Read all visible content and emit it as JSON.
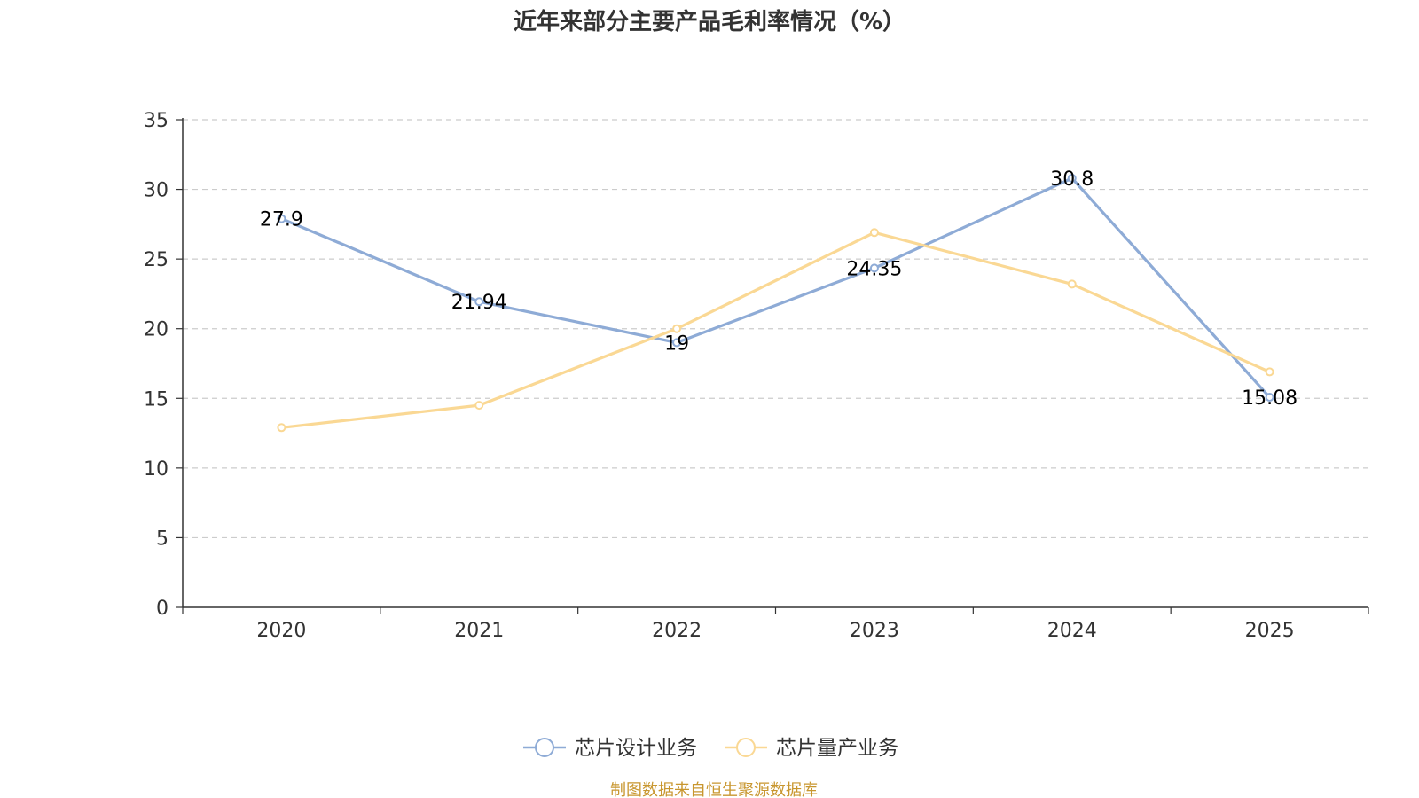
{
  "chart_data": {
    "type": "line",
    "title": "近年来部分主要产品毛利率情况（%）",
    "categories": [
      "2020",
      "2021",
      "2022",
      "2023",
      "2024",
      "2025"
    ],
    "ylim": [
      0,
      35
    ],
    "yticks": [
      0,
      5,
      10,
      15,
      20,
      25,
      30,
      35
    ],
    "grid": true,
    "legend_position": "bottom-center",
    "series": [
      {
        "name": "芯片设计业务",
        "color": "#8eabd6",
        "values": [
          27.9,
          21.94,
          19,
          24.35,
          30.8,
          15.08
        ],
        "labels": [
          "27.9",
          "21.94",
          "19",
          "24.35",
          "30.8",
          "15.08"
        ],
        "show_labels": true
      },
      {
        "name": "芯片量产业务",
        "color": "#fad894",
        "values": [
          12.9,
          14.5,
          20.0,
          26.9,
          23.2,
          16.9
        ],
        "show_labels": false
      }
    ],
    "source": "制图数据来自恒生聚源数据库"
  }
}
